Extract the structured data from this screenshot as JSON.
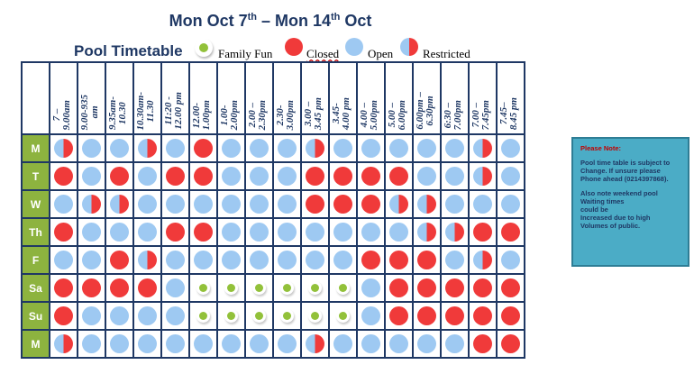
{
  "title": {
    "pre": "Mon Oct 7",
    "sup1": "th",
    "mid": " – Mon 14",
    "sup2": "th",
    "post": " Oct"
  },
  "pool_label": "Pool Timetable",
  "legend": {
    "family": "Family  Fun",
    "closed": "Closed",
    "open": "Open",
    "restricted": "Restricted"
  },
  "time_slots": [
    "7 –\n9.00am",
    "9.00-935\nam",
    "9.35am-\n10.30",
    "10.30am-\n11.30",
    "11:20 -\n12.00 pm",
    "12.00-\n1.00pm",
    "1.00-\n2.00pm",
    "2.00 –\n2.30pm",
    "2.30-\n3.00pm",
    "3.00 –\n3.45 pm",
    "3.45-\n4.00 pm",
    "4.00 –\n5.00pm",
    "5.00 –\n6.00pm",
    "6.00pm –\n6.30pm",
    "6:30 –\n7.00pm",
    "7.00 –\n7.45pm",
    "7.45–\n8.45 pm"
  ],
  "days": [
    {
      "label": "M",
      "cells": [
        "R",
        "O",
        "O",
        "R",
        "O",
        "C",
        "O",
        "O",
        "O",
        "R",
        "O",
        "O",
        "O",
        "O",
        "O",
        "R",
        "O"
      ]
    },
    {
      "label": "T",
      "cells": [
        "C",
        "O",
        "C",
        "O",
        "C",
        "C",
        "O",
        "O",
        "O",
        "C",
        "C",
        "C",
        "C",
        "O",
        "O",
        "R",
        "O"
      ]
    },
    {
      "label": "W",
      "cells": [
        "O",
        "R",
        "R",
        "O",
        "O",
        "O",
        "O",
        "O",
        "O",
        "C",
        "C",
        "C",
        "R",
        "R",
        "O",
        "O",
        "O"
      ]
    },
    {
      "label": "Th",
      "cells": [
        "C",
        "O",
        "O",
        "O",
        "C",
        "C",
        "O",
        "O",
        "O",
        "O",
        "O",
        "O",
        "O",
        "R",
        "R",
        "C",
        "C"
      ]
    },
    {
      "label": "F",
      "cells": [
        "O",
        "O",
        "C",
        "R",
        "O",
        "O",
        "O",
        "O",
        "O",
        "O",
        "O",
        "C",
        "C",
        "C",
        "O",
        "R",
        "O"
      ]
    },
    {
      "label": "Sa",
      "cells": [
        "C",
        "C",
        "C",
        "C",
        "O",
        "F",
        "F",
        "F",
        "F",
        "F",
        "F",
        "O",
        "C",
        "C",
        "C",
        "C",
        "C"
      ]
    },
    {
      "label": "Su",
      "cells": [
        "C",
        "O",
        "O",
        "O",
        "O",
        "F",
        "F",
        "F",
        "F",
        "F",
        "F",
        "O",
        "C",
        "C",
        "C",
        "C",
        "C"
      ]
    },
    {
      "label": "M",
      "cells": [
        "R",
        "O",
        "O",
        "O",
        "O",
        "O",
        "O",
        "O",
        "O",
        "R",
        "O",
        "O",
        "O",
        "O",
        "O",
        "C",
        "C"
      ]
    }
  ],
  "note": {
    "title": "Please Note:",
    "p1": "Pool time table is subject to Change. If unsure please Phone ahead (0214397868).",
    "p2": "Also note weekend pool\nWaiting times\ncould be\nIncreased due to high\nVolumes of public."
  },
  "colors": {
    "open": "#9ec9f2",
    "closed": "#f03a3a",
    "family": "#92c13a",
    "day_bg": "#8db33f",
    "border": "#1f3864"
  }
}
